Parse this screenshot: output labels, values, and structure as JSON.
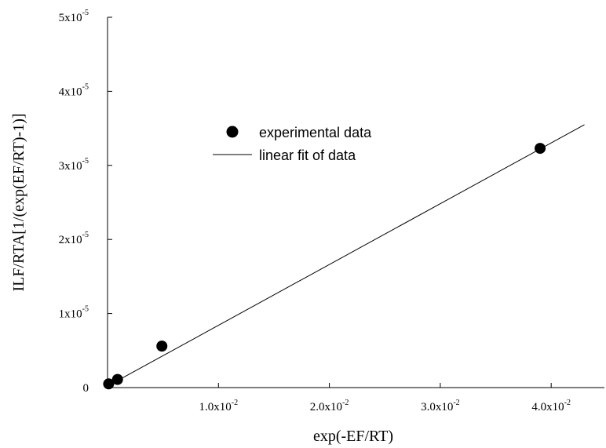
{
  "chart_data": {
    "type": "scatter",
    "title": "",
    "xlabel": "exp(-EF/RT)",
    "ylabel": "ILF/RTA[1/(exp(EF/RT)-1)]",
    "xlim": [
      0,
      0.0448
    ],
    "ylim": [
      0,
      5e-05
    ],
    "x_ticks": [
      {
        "value": 0.01,
        "mantissa": "1.0x10",
        "exp": "-2"
      },
      {
        "value": 0.02,
        "mantissa": "2.0x10",
        "exp": "-2"
      },
      {
        "value": 0.03,
        "mantissa": "3.0x10",
        "exp": "-2"
      },
      {
        "value": 0.04,
        "mantissa": "4.0x10",
        "exp": "-2"
      }
    ],
    "y_ticks": [
      {
        "value": 0,
        "mantissa": "0",
        "exp": ""
      },
      {
        "value": 1e-05,
        "mantissa": "1x10",
        "exp": "-5"
      },
      {
        "value": 2e-05,
        "mantissa": "2x10",
        "exp": "-5"
      },
      {
        "value": 3e-05,
        "mantissa": "3x10",
        "exp": "-5"
      },
      {
        "value": 4e-05,
        "mantissa": "4x10",
        "exp": "-5"
      },
      {
        "value": 5e-05,
        "mantissa": "5x10",
        "exp": "-5"
      }
    ],
    "grid": false,
    "legend_position": "upper-left-center",
    "series": [
      {
        "name": "experimental data",
        "kind": "scatter",
        "color": "#000000",
        "x": [
          0.0001,
          0.0009,
          0.0049,
          0.039
        ],
        "y": [
          5e-07,
          1.1e-06,
          5.6e-06,
          3.23e-05
        ]
      },
      {
        "name": "linear fit of data",
        "kind": "line",
        "color": "#000000",
        "x": [
          0.0,
          0.043
        ],
        "y": [
          2e-07,
          3.55e-05
        ]
      }
    ]
  }
}
